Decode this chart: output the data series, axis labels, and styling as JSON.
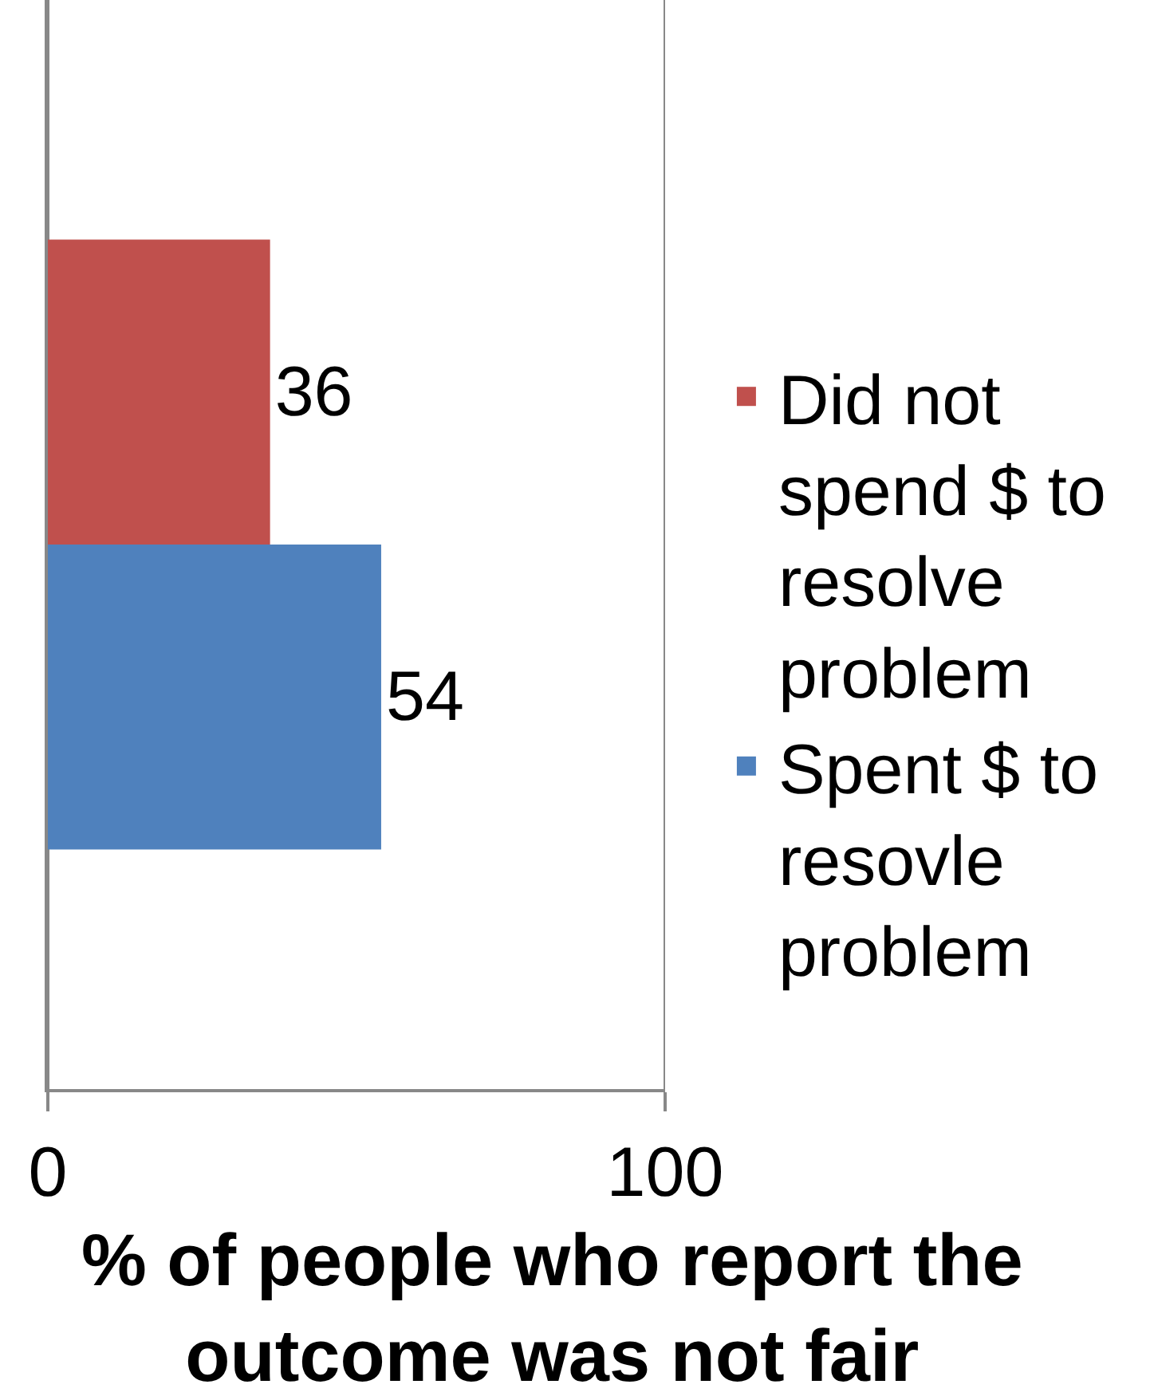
{
  "chart_data": {
    "type": "bar",
    "orientation": "horizontal",
    "categories": [
      null
    ],
    "series": [
      {
        "name": "Did not spend $ to resolve problem",
        "color": "#c0504d",
        "values": [
          36
        ]
      },
      {
        "name": "Spent $ to resovle problem",
        "color": "#4f81bd",
        "values": [
          54
        ]
      }
    ],
    "xlabel": "% of people who report the outcome was not fair",
    "xlim": [
      0,
      100
    ],
    "xticks": [
      0,
      100
    ],
    "grid": "x",
    "legend": "right",
    "data_labels": true,
    "tick_labels": "x"
  }
}
